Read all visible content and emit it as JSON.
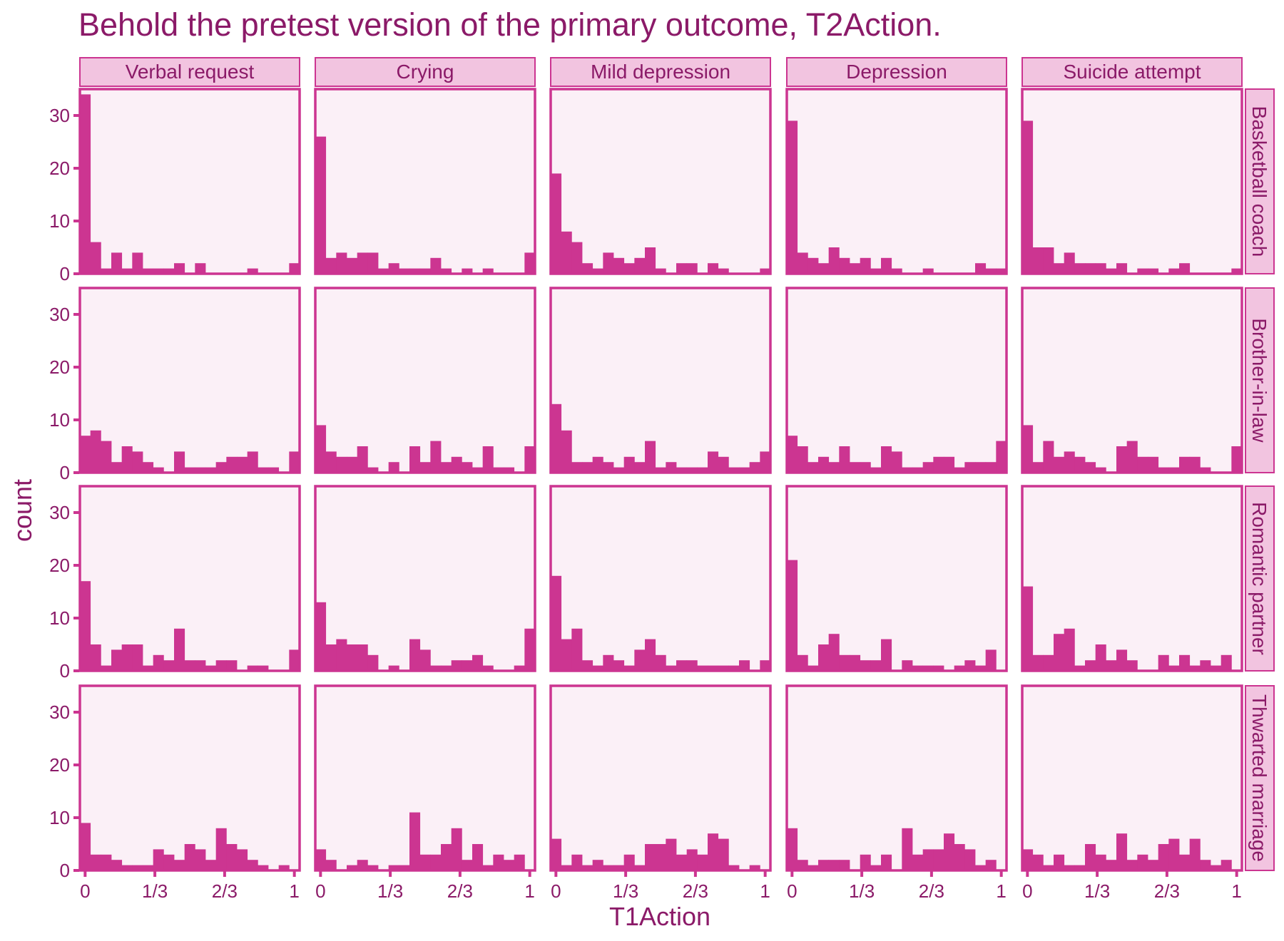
{
  "chart_data": {
    "type": "bar",
    "title": "Behold the pretest version of the primary outcome, T2Action.",
    "xlabel": "T1Action",
    "ylabel": "count",
    "col_facets": [
      "Verbal request",
      "Crying",
      "Mild depression",
      "Depression",
      "Suicide attempt"
    ],
    "row_facets": [
      "Basketball coach",
      "Brother-in-law",
      "Romantic partner",
      "Thwarted marriage"
    ],
    "x_ticks": [
      "0",
      "1/3",
      "2/3",
      "1"
    ],
    "y_ticks": [
      "0",
      "10",
      "20",
      "30"
    ],
    "xlim": [
      -0.025,
      1.025
    ],
    "ylim": [
      0,
      35
    ],
    "bin_width": 0.05,
    "bin_centers": [
      0,
      0.05,
      0.1,
      0.15,
      0.2,
      0.25,
      0.3,
      0.35,
      0.4,
      0.45,
      0.5,
      0.55,
      0.6,
      0.65,
      0.7,
      0.75,
      0.8,
      0.85,
      0.9,
      0.95,
      1.0
    ],
    "grid": false,
    "colors": {
      "bar": "#cc3591",
      "panel_background": "#fbf0f7",
      "panel_border": "#cc3591",
      "strip_background": "#f2c4e0",
      "text": "#8b1a68"
    },
    "panels": [
      {
        "row": "Basketball coach",
        "col": "Verbal request",
        "values": [
          34,
          6,
          1,
          4,
          1,
          4,
          1,
          1,
          1,
          2,
          0,
          2,
          0,
          0,
          0,
          0,
          1,
          0,
          0,
          0,
          2
        ]
      },
      {
        "row": "Basketball coach",
        "col": "Crying",
        "values": [
          26,
          3,
          4,
          3,
          4,
          4,
          1,
          2,
          1,
          1,
          1,
          3,
          1,
          0,
          1,
          0,
          1,
          0,
          0,
          0,
          4
        ]
      },
      {
        "row": "Basketball coach",
        "col": "Mild depression",
        "values": [
          19,
          8,
          6,
          2,
          1,
          4,
          3,
          2,
          3,
          5,
          1,
          0,
          2,
          2,
          0,
          2,
          1,
          0,
          0,
          0,
          1
        ]
      },
      {
        "row": "Basketball coach",
        "col": "Depression",
        "values": [
          29,
          4,
          3,
          2,
          5,
          3,
          2,
          3,
          1,
          3,
          1,
          0,
          0,
          1,
          0,
          0,
          0,
          0,
          2,
          1,
          1
        ]
      },
      {
        "row": "Basketball coach",
        "col": "Suicide attempt",
        "values": [
          29,
          5,
          5,
          2,
          4,
          2,
          2,
          2,
          1,
          2,
          0,
          1,
          1,
          0,
          1,
          2,
          0,
          0,
          0,
          0,
          1
        ]
      },
      {
        "row": "Brother-in-law",
        "col": "Verbal request",
        "values": [
          7,
          8,
          6,
          2,
          5,
          4,
          2,
          1,
          0,
          4,
          1,
          1,
          1,
          2,
          3,
          3,
          4,
          1,
          1,
          0,
          4
        ]
      },
      {
        "row": "Brother-in-law",
        "col": "Crying",
        "values": [
          9,
          4,
          3,
          3,
          5,
          1,
          0,
          2,
          0,
          5,
          2,
          6,
          2,
          3,
          2,
          1,
          5,
          1,
          1,
          0,
          5
        ]
      },
      {
        "row": "Brother-in-law",
        "col": "Mild depression",
        "values": [
          13,
          8,
          2,
          2,
          3,
          2,
          1,
          3,
          2,
          6,
          1,
          2,
          1,
          1,
          1,
          4,
          3,
          1,
          1,
          2,
          4
        ]
      },
      {
        "row": "Brother-in-law",
        "col": "Depression",
        "values": [
          7,
          5,
          2,
          3,
          2,
          5,
          2,
          2,
          1,
          5,
          4,
          1,
          1,
          2,
          3,
          3,
          1,
          2,
          2,
          2,
          6
        ]
      },
      {
        "row": "Brother-in-law",
        "col": "Suicide attempt",
        "values": [
          9,
          2,
          6,
          3,
          4,
          3,
          2,
          1,
          0,
          5,
          6,
          3,
          3,
          1,
          1,
          3,
          3,
          1,
          0,
          0,
          5
        ]
      },
      {
        "row": "Romantic partner",
        "col": "Verbal request",
        "values": [
          17,
          5,
          1,
          4,
          5,
          5,
          1,
          3,
          2,
          8,
          2,
          2,
          1,
          2,
          2,
          0,
          1,
          1,
          0,
          0,
          4
        ]
      },
      {
        "row": "Romantic partner",
        "col": "Crying",
        "values": [
          13,
          5,
          6,
          5,
          5,
          3,
          0,
          1,
          0,
          6,
          4,
          1,
          1,
          2,
          2,
          3,
          1,
          0,
          0,
          1,
          8
        ]
      },
      {
        "row": "Romantic partner",
        "col": "Mild depression",
        "values": [
          18,
          6,
          8,
          2,
          1,
          3,
          2,
          1,
          4,
          6,
          3,
          1,
          2,
          2,
          1,
          1,
          1,
          1,
          2,
          0,
          2
        ]
      },
      {
        "row": "Romantic partner",
        "col": "Depression",
        "values": [
          21,
          3,
          1,
          5,
          7,
          3,
          3,
          2,
          2,
          6,
          0,
          2,
          1,
          1,
          1,
          0,
          1,
          2,
          1,
          4,
          0
        ]
      },
      {
        "row": "Romantic partner",
        "col": "Suicide attempt",
        "values": [
          16,
          3,
          3,
          7,
          8,
          1,
          2,
          5,
          2,
          4,
          2,
          0,
          0,
          3,
          1,
          3,
          1,
          2,
          1,
          3,
          0
        ]
      },
      {
        "row": "Thwarted marriage",
        "col": "Verbal request",
        "values": [
          9,
          3,
          3,
          2,
          1,
          1,
          1,
          4,
          3,
          2,
          5,
          4,
          2,
          8,
          5,
          4,
          2,
          1,
          0,
          1,
          0
        ]
      },
      {
        "row": "Thwarted marriage",
        "col": "Crying",
        "values": [
          4,
          2,
          0,
          1,
          2,
          1,
          0,
          1,
          1,
          11,
          3,
          3,
          5,
          8,
          2,
          5,
          1,
          3,
          2,
          3,
          0
        ]
      },
      {
        "row": "Thwarted marriage",
        "col": "Mild depression",
        "values": [
          6,
          1,
          3,
          1,
          2,
          1,
          1,
          3,
          1,
          5,
          5,
          6,
          3,
          4,
          3,
          7,
          6,
          1,
          0,
          1,
          0
        ]
      },
      {
        "row": "Thwarted marriage",
        "col": "Depression",
        "values": [
          8,
          2,
          1,
          2,
          2,
          2,
          0,
          3,
          1,
          3,
          0,
          8,
          3,
          4,
          4,
          7,
          5,
          4,
          1,
          2,
          0
        ]
      },
      {
        "row": "Thwarted marriage",
        "col": "Suicide attempt",
        "values": [
          4,
          3,
          1,
          3,
          1,
          1,
          5,
          3,
          2,
          7,
          2,
          3,
          2,
          5,
          6,
          3,
          6,
          2,
          1,
          2,
          0
        ]
      }
    ]
  }
}
